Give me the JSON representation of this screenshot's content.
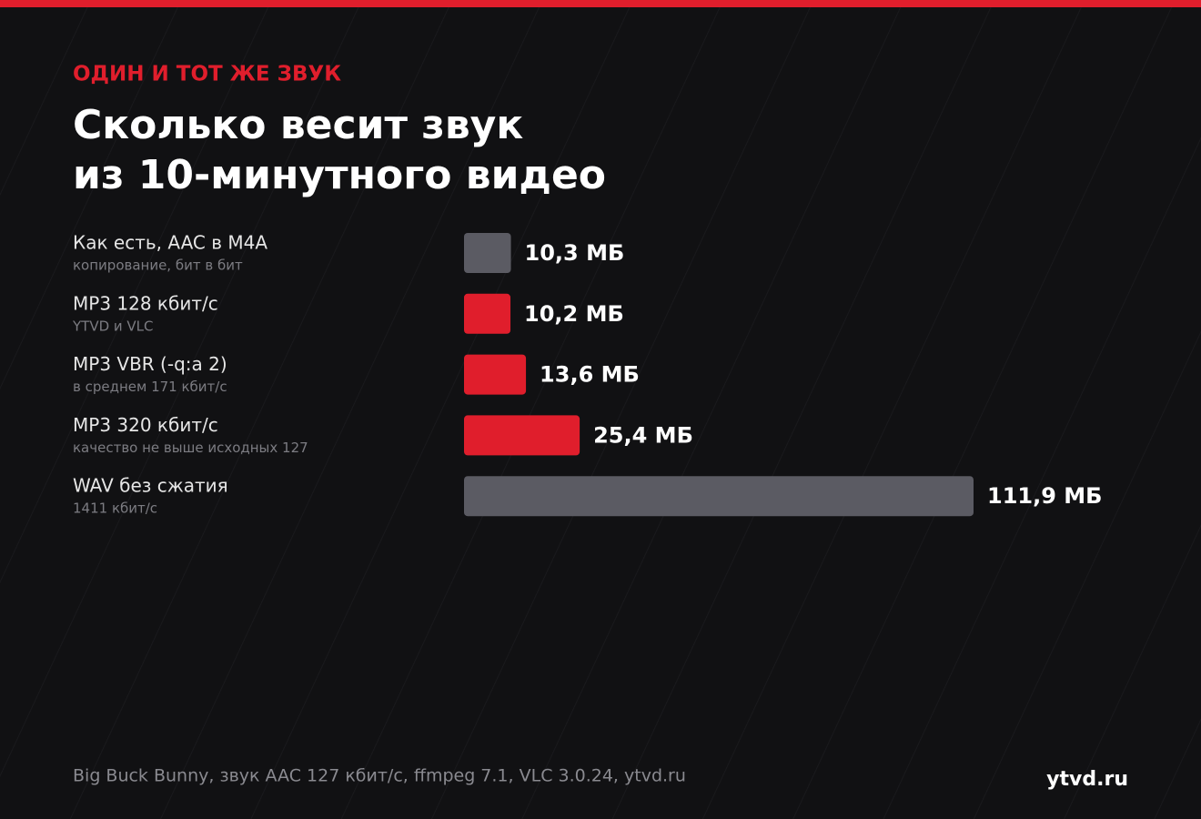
{
  "chart_data": {
    "type": "bar",
    "orientation": "horizontal",
    "kicker": "ОДИН И ТОТ ЖЕ ЗВУК",
    "title": [
      "Сколько весит звук",
      "из 10-минутного видео"
    ],
    "categories": [
      "Как есть, AAC в M4A",
      "MP3 128 кбит/с",
      "MP3 VBR (-q:a 2)",
      "MP3 320 кбит/с",
      "WAV без сжатия"
    ],
    "category_notes": [
      "копирование, бит в бит",
      "YTVD и VLC",
      "в среднем 171 кбит/с",
      "качество не выше исходных 127",
      "1411 кбит/с"
    ],
    "values": [
      10.3,
      10.2,
      13.6,
      25.4,
      111.9
    ],
    "value_labels": [
      "10,3 МБ",
      "10,2 МБ",
      "13,6 МБ",
      "25,4 МБ",
      "111,9 МБ"
    ],
    "colors": [
      "#5b5b63",
      "#e01e2c",
      "#e01e2c",
      "#e01e2c",
      "#5b5b63"
    ],
    "source": "Big Buck Bunny, звук AAC 127 кбит/с, ffmpeg 7.1, VLC 3.0.24, ytvd.ru",
    "brand": "ytvd.ru"
  }
}
